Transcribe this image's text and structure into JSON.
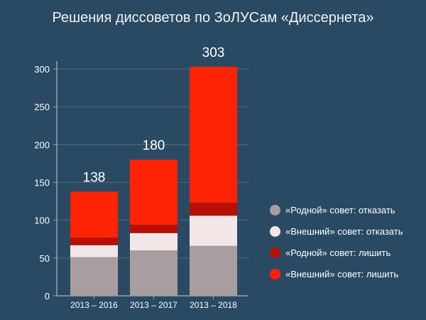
{
  "chart_data": {
    "type": "bar",
    "stacked": true,
    "title": "Решения диссоветов по ЗоЛУСам «Диссернета»",
    "categories": [
      "2013 – 2016",
      "2013 – 2017",
      "2013 – 2018"
    ],
    "totals": [
      138,
      180,
      303
    ],
    "series": [
      {
        "name": "«Родной» совет: отказать",
        "color": "#a89e9f",
        "values": [
          51,
          60,
          66
        ]
      },
      {
        "name": "«Внешний» совет: отказать",
        "color": "#f2e6e6",
        "values": [
          16,
          23,
          40
        ]
      },
      {
        "name": "«Родной» совет: лишить",
        "color": "#b50f06",
        "values": [
          10,
          11,
          17
        ]
      },
      {
        "name": "«Внешний» совет: лишить",
        "color": "#ff2306",
        "values": [
          61,
          86,
          180
        ]
      }
    ],
    "yticks": [
      0,
      50,
      100,
      150,
      200,
      250,
      300
    ],
    "ylim": [
      0,
      310
    ],
    "grid": true,
    "legend_position": "right"
  }
}
